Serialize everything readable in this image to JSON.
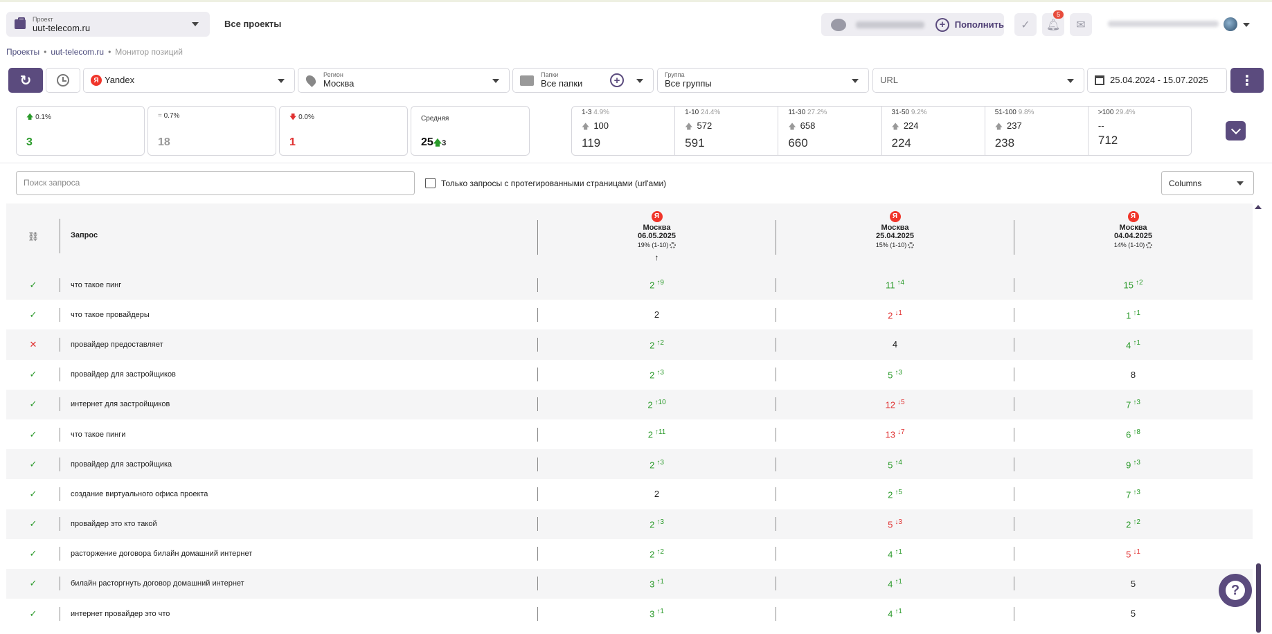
{
  "header": {
    "project_label": "Проект",
    "project_value": "uut-telecom.ru",
    "all_projects": "Все проекты",
    "topup_label": "Пополнить",
    "notification_count": "5"
  },
  "breadcrumb": [
    "Проекты",
    "uut-telecom.ru",
    "Монитор позиций"
  ],
  "filters": {
    "search_engine": "Yandex",
    "region_label": "Регион",
    "region_value": "Москва",
    "folders_label": "Папки",
    "folders_value": "Все папки",
    "group_label": "Группа",
    "group_value": "Все группы",
    "url_placeholder": "URL",
    "date_range": "25.04.2024 - 15.07.2025"
  },
  "summary": {
    "up_pct": "0.1%",
    "up_count": "3",
    "eq_pct": "0.7%",
    "eq_count": "18",
    "down_pct": "0.0%",
    "down_count": "1",
    "avg_label": "Средняя",
    "avg_value": "25",
    "avg_delta": "3"
  },
  "distribution": [
    {
      "range": "1-3",
      "pct": "4.9%",
      "delta": "100",
      "total": "119"
    },
    {
      "range": "1-10",
      "pct": "24.4%",
      "delta": "572",
      "total": "591"
    },
    {
      "range": "11-30",
      "pct": "27.2%",
      "delta": "658",
      "total": "660"
    },
    {
      "range": "31-50",
      "pct": "9.2%",
      "delta": "224",
      "total": "224"
    },
    {
      "range": "51-100",
      "pct": "9.8%",
      "delta": "237",
      "total": "238"
    },
    {
      "range": ">100",
      "pct": "29.4%",
      "delta": "--",
      "total": "712"
    }
  ],
  "toolbar": {
    "search_placeholder": "Поиск запроса",
    "tagged_only_label": "Только запросы с протегированными страницами (url'ами)",
    "columns_label": "Columns"
  },
  "table": {
    "query_header": "Запрос",
    "columns": [
      {
        "city": "Москва",
        "date": "06.05.2025",
        "top": "19% (1-10)"
      },
      {
        "city": "Москва",
        "date": "25.04.2025",
        "top": "15% (1-10)"
      },
      {
        "city": "Москва",
        "date": "04.04.2025",
        "top": "14% (1-10)"
      }
    ],
    "rows": [
      {
        "status": "ok",
        "query": "что такое пинг",
        "p": [
          [
            "2",
            "9",
            "up"
          ],
          [
            "11",
            "4",
            "up"
          ],
          [
            "15",
            "2",
            "up"
          ]
        ]
      },
      {
        "status": "ok",
        "query": "что такое провайдеры",
        "p": [
          [
            "2",
            "",
            ""
          ],
          [
            "2",
            "1",
            "down"
          ],
          [
            "1",
            "1",
            "up"
          ]
        ]
      },
      {
        "status": "x",
        "query": "провайдер предоставляет",
        "p": [
          [
            "2",
            "2",
            "up"
          ],
          [
            "4",
            "",
            ""
          ],
          [
            "4",
            "1",
            "up"
          ]
        ]
      },
      {
        "status": "ok",
        "query": "провайдер для застройщиков",
        "p": [
          [
            "2",
            "3",
            "up"
          ],
          [
            "5",
            "3",
            "up"
          ],
          [
            "8",
            "",
            ""
          ]
        ]
      },
      {
        "status": "ok",
        "query": "интернет для застройщиков",
        "p": [
          [
            "2",
            "10",
            "up"
          ],
          [
            "12",
            "5",
            "down"
          ],
          [
            "7",
            "3",
            "up"
          ]
        ]
      },
      {
        "status": "ok",
        "query": "что такое пинги",
        "p": [
          [
            "2",
            "11",
            "up"
          ],
          [
            "13",
            "7",
            "down"
          ],
          [
            "6",
            "8",
            "up"
          ]
        ]
      },
      {
        "status": "ok",
        "query": "провайдер для застройщика",
        "p": [
          [
            "2",
            "3",
            "up"
          ],
          [
            "5",
            "4",
            "up"
          ],
          [
            "9",
            "3",
            "up"
          ]
        ]
      },
      {
        "status": "ok",
        "query": "создание виртуального офиса проекта",
        "p": [
          [
            "2",
            "",
            ""
          ],
          [
            "2",
            "5",
            "up"
          ],
          [
            "7",
            "3",
            "up"
          ]
        ]
      },
      {
        "status": "ok",
        "query": "провайдер это кто такой",
        "p": [
          [
            "2",
            "3",
            "up"
          ],
          [
            "5",
            "3",
            "down"
          ],
          [
            "2",
            "2",
            "up"
          ]
        ]
      },
      {
        "status": "ok",
        "query": "расторжение договора билайн домашний интернет",
        "p": [
          [
            "2",
            "2",
            "up"
          ],
          [
            "4",
            "1",
            "up"
          ],
          [
            "5",
            "1",
            "down"
          ]
        ]
      },
      {
        "status": "ok",
        "query": "билайн расторгнуть договор домашний интернет",
        "p": [
          [
            "3",
            "1",
            "up"
          ],
          [
            "4",
            "1",
            "up"
          ],
          [
            "5",
            "",
            ""
          ]
        ]
      },
      {
        "status": "ok",
        "query": "интернет провайдер это что",
        "p": [
          [
            "3",
            "1",
            "up"
          ],
          [
            "4",
            "1",
            "up"
          ],
          [
            "5",
            "",
            ""
          ]
        ]
      }
    ]
  }
}
